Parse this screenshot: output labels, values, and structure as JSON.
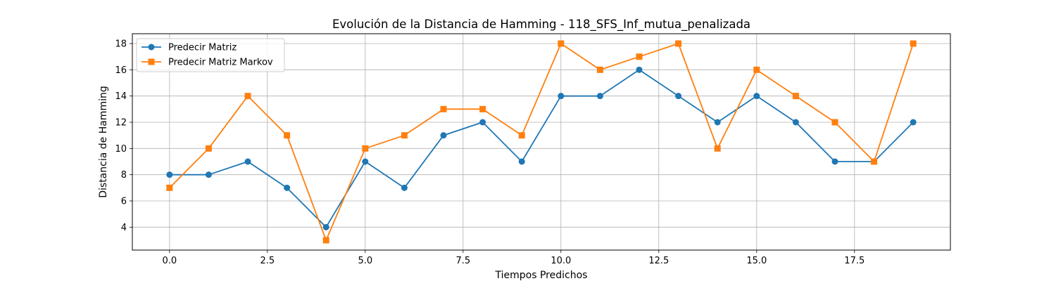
{
  "chart_data": {
    "type": "line",
    "title": "Evolución de la Distancia de Hamming - 118_SFS_Inf_mutua_penalizada",
    "xlabel": "Tiempos Predichos",
    "ylabel": "Distancia de Hamming",
    "x": [
      0,
      1,
      2,
      3,
      4,
      5,
      6,
      7,
      8,
      9,
      10,
      11,
      12,
      13,
      14,
      15,
      16,
      17,
      18,
      19
    ],
    "series": [
      {
        "name": "Predecir Matriz",
        "color": "#1f77b4",
        "marker": "circle",
        "values": [
          8,
          8,
          9,
          7,
          4,
          9,
          7,
          11,
          12,
          9,
          14,
          14,
          16,
          14,
          12,
          14,
          12,
          9,
          9,
          12
        ]
      },
      {
        "name": "Predecir Matriz Markov",
        "color": "#ff7f0e",
        "marker": "square",
        "values": [
          7,
          10,
          14,
          11,
          3,
          10,
          11,
          13,
          13,
          11,
          18,
          16,
          17,
          18,
          10,
          16,
          14,
          12,
          9,
          18
        ]
      }
    ],
    "xlim": [
      -0.95,
      19.95
    ],
    "ylim": [
      2.25,
      18.75
    ],
    "xticks": [
      0.0,
      2.5,
      5.0,
      7.5,
      10.0,
      12.5,
      15.0,
      17.5
    ],
    "xtick_labels": [
      "0.0",
      "2.5",
      "5.0",
      "7.5",
      "10.0",
      "12.5",
      "15.0",
      "17.5"
    ],
    "yticks": [
      4,
      6,
      8,
      10,
      12,
      14,
      16,
      18
    ],
    "ytick_labels": [
      "4",
      "6",
      "8",
      "10",
      "12",
      "14",
      "16",
      "18"
    ],
    "grid": true,
    "legend_position": "top-left"
  }
}
